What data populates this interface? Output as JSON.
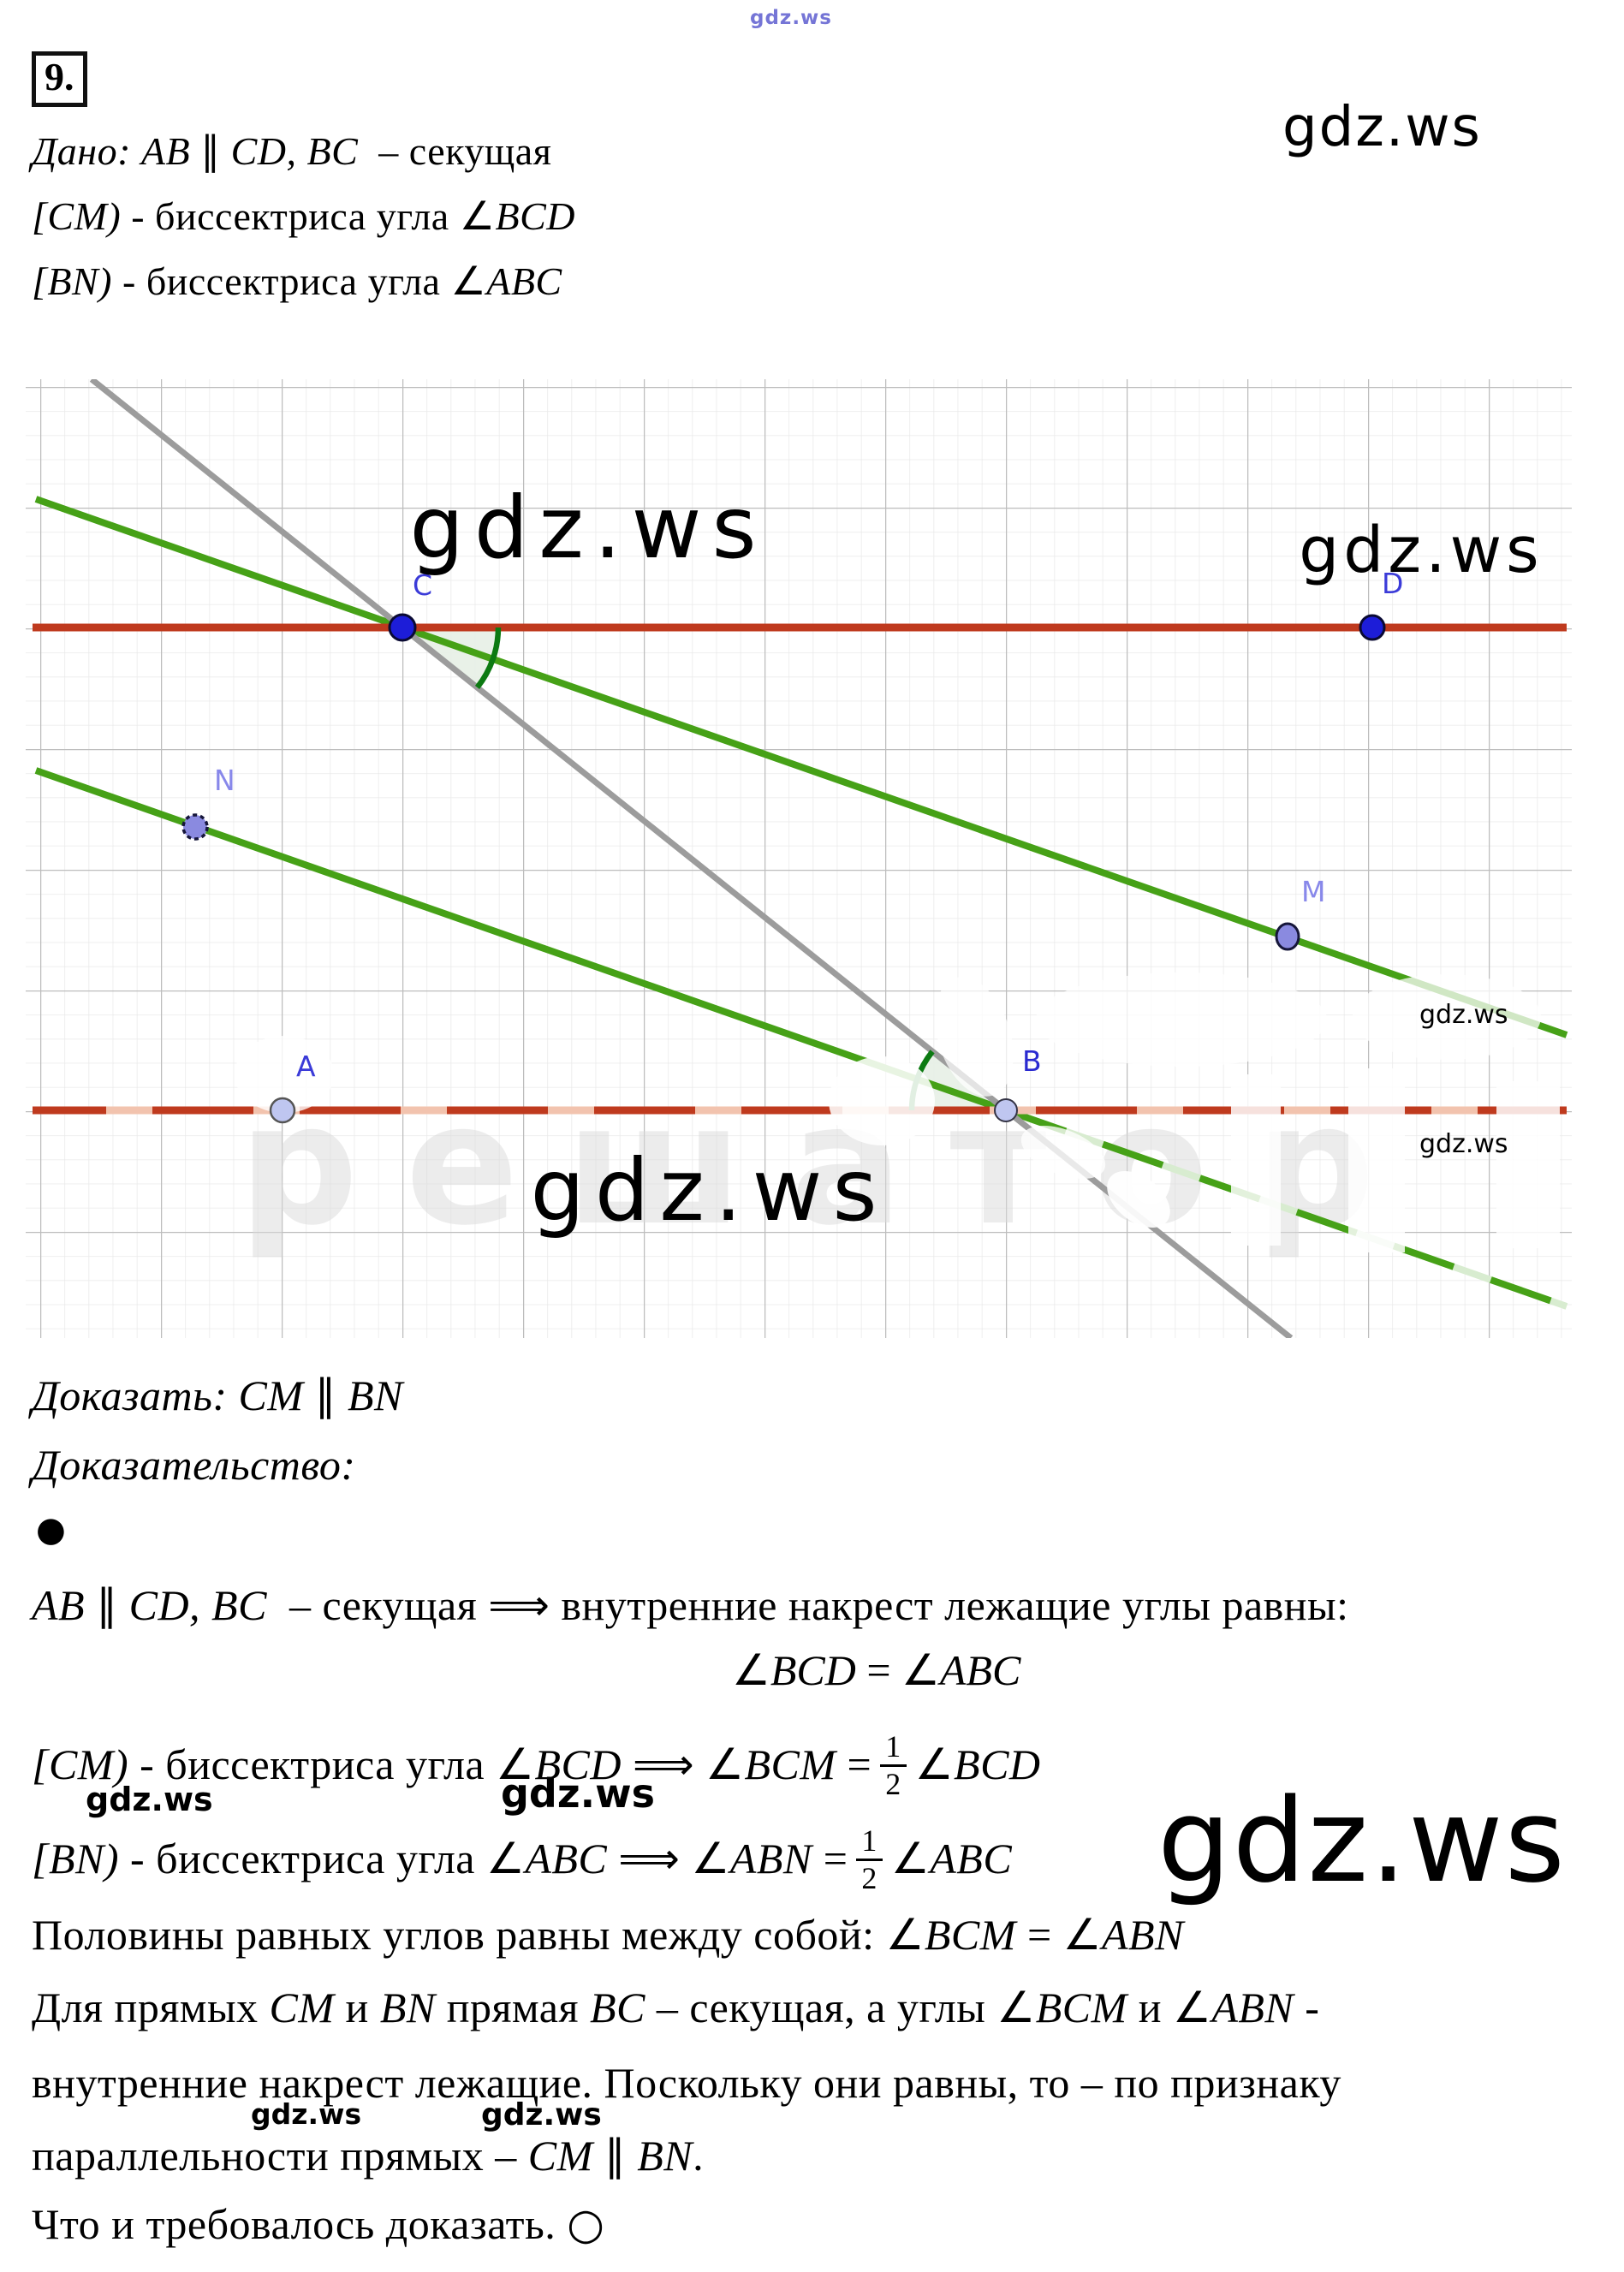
{
  "colors": {
    "red_line": "#bf3a1e",
    "red_line_faded": "#f2c3ae",
    "green_line": "#46a117",
    "green_pale": "#d8ecd0",
    "green_dark": "#0c7a12",
    "angle_fill": "#e7f0e6",
    "gray_line": "#9c9c9c",
    "grid_minor": "#e9e9e9",
    "grid_major": "#bdbdbd",
    "point_blue": "#1d1dd8",
    "point_purple": "#8a8ae0",
    "point_lavender": "#bfc6f0",
    "label_blue": "#3b3bd8",
    "label_purple": "#8888ea",
    "watermark_faint": "#dadada",
    "watermark_blue": "#5e5ed0"
  },
  "header": {
    "problem_number": "9.",
    "watermark_top_center_tiny": "gdz.ws",
    "watermark_top_right": "gdz.ws"
  },
  "given": {
    "line1": [
      [
        "it",
        "Дано: "
      ],
      [
        "it",
        "AB "
      ],
      [
        "sy",
        "∥"
      ],
      [
        "it",
        " CD, BC "
      ],
      [
        "up",
        " – секущая"
      ]
    ],
    "line2": [
      [
        "it",
        "[CM)"
      ],
      [
        "up",
        " - биссектриса угла "
      ],
      [
        "sy",
        "∠"
      ],
      [
        "it",
        "BCD"
      ]
    ],
    "line3": [
      [
        "it",
        "[BN)"
      ],
      [
        "up",
        " - биссектриса угла "
      ],
      [
        "sy",
        "∠"
      ],
      [
        "it",
        "ABC"
      ]
    ]
  },
  "diagram": {
    "labels": {
      "A": "A",
      "B": "B",
      "C": "C",
      "D": "D",
      "M": "M",
      "N": "N"
    },
    "watermarks": {
      "big_top_center": "gdz.ws",
      "big_top_right": "gdz.ws",
      "big_bottom": "gdz.ws",
      "small_right_1": "gdz.ws",
      "small_right_2": "gdz.ws",
      "faint_background": "решатор"
    }
  },
  "proof": {
    "prove_line": [
      [
        "it",
        "Доказать: "
      ],
      [
        "it",
        "CM "
      ],
      [
        "sy",
        "∥"
      ],
      [
        "it",
        " BN"
      ]
    ],
    "proof_heading": [
      [
        "it",
        "Доказательство:"
      ]
    ],
    "bullet": "●",
    "line_alternate": [
      [
        "it",
        "AB "
      ],
      [
        "sy",
        "∥"
      ],
      [
        "it",
        " CD, BC "
      ],
      [
        "up",
        " – секущая "
      ],
      [
        "sy",
        "⟹"
      ],
      [
        "up",
        " внутренние накрест лежащие углы равны:"
      ]
    ],
    "eq_center": [
      [
        "sy",
        "∠"
      ],
      [
        "it",
        "BCD"
      ],
      [
        "up",
        " = "
      ],
      [
        "sy",
        "∠"
      ],
      [
        "it",
        "ABC"
      ]
    ],
    "line_cm_pre": [
      [
        "it",
        "[CM)"
      ],
      [
        "up",
        " - биссектриса угла "
      ],
      [
        "sy",
        "∠"
      ],
      [
        "it",
        "BCD"
      ],
      [
        "up",
        " "
      ],
      [
        "sy",
        "⟹"
      ],
      [
        "up",
        " "
      ],
      [
        "sy",
        "∠"
      ],
      [
        "it",
        "BCM"
      ],
      [
        "up",
        " ="
      ]
    ],
    "frac_cm": {
      "num": "1",
      "den": "2"
    },
    "line_cm_post": [
      [
        "sy",
        "∠"
      ],
      [
        "it",
        "BCD"
      ]
    ],
    "line_bn_pre": [
      [
        "it",
        "[BN)"
      ],
      [
        "up",
        " - биссектриса угла "
      ],
      [
        "sy",
        "∠"
      ],
      [
        "it",
        "ABC"
      ],
      [
        "up",
        " "
      ],
      [
        "sy",
        "⟹"
      ],
      [
        "up",
        " "
      ],
      [
        "sy",
        "∠"
      ],
      [
        "it",
        "ABN"
      ],
      [
        "up",
        " ="
      ]
    ],
    "frac_bn": {
      "num": "1",
      "den": "2"
    },
    "line_bn_post": [
      [
        "sy",
        "∠"
      ],
      [
        "it",
        "ABC"
      ]
    ],
    "line_halves": [
      [
        "up",
        "Половины равных углов равны между собой: "
      ],
      [
        "sy",
        "∠"
      ],
      [
        "it",
        "BCM"
      ],
      [
        "up",
        " = "
      ],
      [
        "sy",
        "∠"
      ],
      [
        "it",
        "ABN"
      ]
    ],
    "line_for_lines": [
      [
        "up",
        "Для прямых "
      ],
      [
        "it",
        "CM"
      ],
      [
        "up",
        " и "
      ],
      [
        "it",
        "BN"
      ],
      [
        "up",
        " прямая "
      ],
      [
        "it",
        "BC"
      ],
      [
        "up",
        " – секущая, а углы "
      ],
      [
        "sy",
        "∠"
      ],
      [
        "it",
        "BCM"
      ],
      [
        "up",
        " и "
      ],
      [
        "sy",
        "∠"
      ],
      [
        "it",
        "ABN"
      ],
      [
        "up",
        " -"
      ]
    ],
    "line_interior": [
      [
        "up",
        "внутренние накрест лежащие. Поскольку они равны, то – по признаку"
      ]
    ],
    "line_parallel": [
      [
        "up",
        "параллельности прямых – "
      ],
      [
        "it",
        "CM "
      ],
      [
        "sy",
        "∥"
      ],
      [
        "it",
        " BN"
      ],
      [
        "up",
        "."
      ]
    ],
    "line_qed": [
      [
        "up",
        "Что и требовалось доказать. "
      ],
      [
        "sy",
        "○"
      ]
    ]
  },
  "watermarks_body": {
    "mid_left": "gdz.ws",
    "mid_center": "gdz.ws",
    "mid_right_big": "gdz.ws",
    "bottom_left": "gdz.ws",
    "bottom_center": "gdz.ws"
  }
}
